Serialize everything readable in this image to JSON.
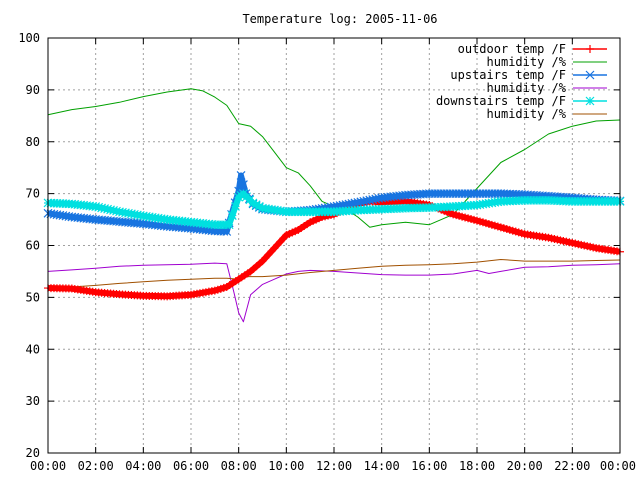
{
  "chart_data": {
    "type": "line",
    "title": "Temperature log: 2005-11-06",
    "xlabel": "",
    "ylabel": "",
    "ylim": [
      20,
      100
    ],
    "yticks": [
      20,
      30,
      40,
      50,
      60,
      70,
      80,
      90,
      100
    ],
    "xlim": [
      0,
      24
    ],
    "xticks": [
      {
        "hour": 0,
        "label": "00:00"
      },
      {
        "hour": 2,
        "label": "02:00"
      },
      {
        "hour": 4,
        "label": "04:00"
      },
      {
        "hour": 6,
        "label": "06:00"
      },
      {
        "hour": 8,
        "label": "08:00"
      },
      {
        "hour": 10,
        "label": "10:00"
      },
      {
        "hour": 12,
        "label": "12:00"
      },
      {
        "hour": 14,
        "label": "14:00"
      },
      {
        "hour": 16,
        "label": "16:00"
      },
      {
        "hour": 18,
        "label": "18:00"
      },
      {
        "hour": 20,
        "label": "20:00"
      },
      {
        "hour": 22,
        "label": "22:00"
      },
      {
        "hour": 24,
        "label": "00:00"
      }
    ],
    "grid": true,
    "legend_position": "top-right",
    "series": [
      {
        "name": "outdoor temp /F",
        "color": "#ff0000",
        "marker": "plus",
        "style": "thick",
        "points": [
          [
            0,
            51.8
          ],
          [
            1,
            51.7
          ],
          [
            2,
            51.0
          ],
          [
            3,
            50.6
          ],
          [
            4,
            50.3
          ],
          [
            5,
            50.2
          ],
          [
            6,
            50.5
          ],
          [
            7,
            51.3
          ],
          [
            7.5,
            52.0
          ],
          [
            8,
            53.5
          ],
          [
            8.5,
            55.0
          ],
          [
            9,
            57.0
          ],
          [
            9.5,
            59.5
          ],
          [
            10,
            62.0
          ],
          [
            10.5,
            63.0
          ],
          [
            11,
            64.5
          ],
          [
            11.5,
            65.5
          ],
          [
            12,
            66.0
          ],
          [
            12.5,
            67.0
          ],
          [
            13,
            68.0
          ],
          [
            13.5,
            68.5
          ],
          [
            14,
            68.3
          ],
          [
            15,
            68.5
          ],
          [
            16,
            67.8
          ],
          [
            17,
            66.0
          ],
          [
            18,
            64.8
          ],
          [
            19,
            63.5
          ],
          [
            20,
            62.2
          ],
          [
            21,
            61.5
          ],
          [
            22,
            60.5
          ],
          [
            23,
            59.5
          ],
          [
            24,
            58.8
          ]
        ]
      },
      {
        "name": "humidity /%",
        "color": "#00a000",
        "marker": "none",
        "style": "thin",
        "points": [
          [
            0,
            85.2
          ],
          [
            1,
            86.2
          ],
          [
            2,
            86.8
          ],
          [
            3,
            87.6
          ],
          [
            4,
            88.7
          ],
          [
            5,
            89.6
          ],
          [
            6,
            90.2
          ],
          [
            6.5,
            89.8
          ],
          [
            7,
            88.6
          ],
          [
            7.5,
            87.0
          ],
          [
            8,
            83.5
          ],
          [
            8.5,
            83.0
          ],
          [
            9,
            81.0
          ],
          [
            9.5,
            78.0
          ],
          [
            10,
            75.0
          ],
          [
            10.5,
            74.0
          ],
          [
            11,
            71.5
          ],
          [
            11.5,
            68.5
          ],
          [
            12,
            67.5
          ],
          [
            12.5,
            67.0
          ],
          [
            13,
            65.5
          ],
          [
            13.5,
            63.5
          ],
          [
            14,
            64.0
          ],
          [
            15,
            64.5
          ],
          [
            16,
            64.0
          ],
          [
            17,
            66.0
          ],
          [
            18,
            71.0
          ],
          [
            19,
            76.0
          ],
          [
            20,
            78.5
          ],
          [
            21,
            81.5
          ],
          [
            22,
            83.0
          ],
          [
            23,
            84.0
          ],
          [
            24,
            84.2
          ]
        ]
      },
      {
        "name": "upstairs temp /F",
        "color": "#1874e0",
        "marker": "cross",
        "style": "thick",
        "points": [
          [
            0,
            66.2
          ],
          [
            1,
            65.5
          ],
          [
            2,
            65.0
          ],
          [
            3,
            64.6
          ],
          [
            4,
            64.2
          ],
          [
            5,
            63.7
          ],
          [
            6,
            63.3
          ],
          [
            7,
            62.8
          ],
          [
            7.5,
            62.7
          ],
          [
            7.7,
            66.0
          ],
          [
            8,
            70.5
          ],
          [
            8.1,
            73.5
          ],
          [
            8.3,
            70.0
          ],
          [
            8.6,
            68.0
          ],
          [
            9,
            67.0
          ],
          [
            10,
            66.5
          ],
          [
            11,
            66.8
          ],
          [
            12,
            67.5
          ],
          [
            13,
            68.3
          ],
          [
            14,
            69.2
          ],
          [
            15,
            69.7
          ],
          [
            16,
            70.0
          ],
          [
            17,
            70.0
          ],
          [
            18,
            70.0
          ],
          [
            19,
            70.0
          ],
          [
            20,
            69.8
          ],
          [
            21,
            69.5
          ],
          [
            22,
            69.2
          ],
          [
            23,
            68.8
          ],
          [
            24,
            68.6
          ]
        ]
      },
      {
        "name": "humidity /%",
        "color": "#a000d0",
        "marker": "none",
        "style": "thin",
        "points": [
          [
            0,
            55.0
          ],
          [
            1,
            55.3
          ],
          [
            2,
            55.6
          ],
          [
            3,
            56.0
          ],
          [
            4,
            56.2
          ],
          [
            5,
            56.3
          ],
          [
            6,
            56.4
          ],
          [
            7,
            56.6
          ],
          [
            7.5,
            56.5
          ],
          [
            7.8,
            51.0
          ],
          [
            8,
            47.0
          ],
          [
            8.2,
            45.3
          ],
          [
            8.5,
            50.5
          ],
          [
            9,
            52.5
          ],
          [
            9.5,
            53.5
          ],
          [
            10,
            54.5
          ],
          [
            10.5,
            55.0
          ],
          [
            11,
            55.2
          ],
          [
            12,
            55.0
          ],
          [
            13,
            54.7
          ],
          [
            14,
            54.4
          ],
          [
            15,
            54.3
          ],
          [
            16,
            54.3
          ],
          [
            17,
            54.5
          ],
          [
            18,
            55.2
          ],
          [
            18.5,
            54.6
          ],
          [
            19,
            55.0
          ],
          [
            20,
            55.8
          ],
          [
            21,
            55.9
          ],
          [
            22,
            56.2
          ],
          [
            23,
            56.3
          ],
          [
            24,
            56.5
          ]
        ]
      },
      {
        "name": "",
        "color": "#a05000",
        "marker": "none",
        "style": "thin",
        "points": [
          [
            0,
            51.8
          ],
          [
            1,
            52.0
          ],
          [
            2,
            52.3
          ],
          [
            3,
            52.7
          ],
          [
            4,
            53.0
          ],
          [
            5,
            53.3
          ],
          [
            6,
            53.5
          ],
          [
            7,
            53.7
          ],
          [
            7.5,
            53.7
          ],
          [
            8,
            53.5
          ],
          [
            8.3,
            54.0
          ],
          [
            9,
            54.0
          ],
          [
            10,
            54.3
          ],
          [
            11,
            54.8
          ],
          [
            12,
            55.2
          ],
          [
            13,
            55.6
          ],
          [
            14,
            56.0
          ],
          [
            15,
            56.2
          ],
          [
            16,
            56.3
          ],
          [
            17,
            56.5
          ],
          [
            18,
            56.8
          ],
          [
            19,
            57.3
          ],
          [
            20,
            57.0
          ],
          [
            21,
            57.0
          ],
          [
            22,
            57.0
          ],
          [
            23,
            57.1
          ],
          [
            24,
            57.2
          ]
        ]
      },
      {
        "name": "downstairs temp /F",
        "color": "#00e0e0",
        "marker": "star",
        "style": "thick",
        "points": [
          [
            0,
            68.2
          ],
          [
            1,
            68.0
          ],
          [
            2,
            67.5
          ],
          [
            3,
            66.5
          ],
          [
            4,
            65.7
          ],
          [
            5,
            65.0
          ],
          [
            6,
            64.5
          ],
          [
            7,
            64.0
          ],
          [
            7.6,
            64.0
          ],
          [
            8,
            69.3
          ],
          [
            8.2,
            70.0
          ],
          [
            8.6,
            68.2
          ],
          [
            9,
            67.2
          ],
          [
            10,
            66.5
          ],
          [
            11,
            66.5
          ],
          [
            12,
            66.5
          ],
          [
            13,
            66.8
          ],
          [
            14,
            67.0
          ],
          [
            15,
            67.2
          ],
          [
            16,
            67.3
          ],
          [
            17,
            67.5
          ],
          [
            18,
            67.8
          ],
          [
            19,
            68.5
          ],
          [
            20,
            68.7
          ],
          [
            21,
            68.7
          ],
          [
            22,
            68.5
          ],
          [
            23,
            68.5
          ],
          [
            24,
            68.5
          ]
        ]
      }
    ],
    "legend": [
      {
        "label": "outdoor temp /F",
        "series": 0
      },
      {
        "label": "humidity /%",
        "series": 1
      },
      {
        "label": "upstairs temp /F",
        "series": 2
      },
      {
        "label": "humidity /%",
        "series": 3
      },
      {
        "label": "downstairs temp /F",
        "series": 5
      },
      {
        "label": "humidity /%",
        "series": 4
      }
    ]
  }
}
